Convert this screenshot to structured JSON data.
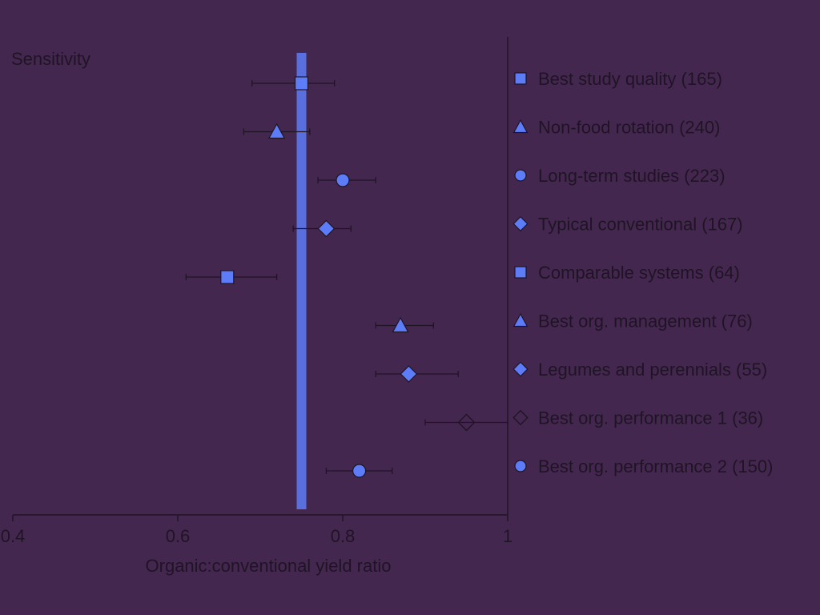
{
  "chart_data": {
    "type": "scatter",
    "title": "Sensitivity",
    "xlabel": "Organic:conventional yield ratio",
    "ylabel": "",
    "xlim": [
      0.4,
      1.0
    ],
    "xticks": [
      "0.4",
      "0.6",
      "0.8",
      "1"
    ],
    "xtick_values": [
      0.4,
      0.6,
      0.8,
      1.0
    ],
    "reference_line": 0.75,
    "grid": false,
    "legend_position": "right",
    "series": [
      {
        "name": "Best study quality (165)",
        "marker": "square",
        "x": 0.75,
        "lo": 0.69,
        "hi": 0.79
      },
      {
        "name": "Non-food rotation (240)",
        "marker": "triangle",
        "x": 0.72,
        "lo": 0.68,
        "hi": 0.76
      },
      {
        "name": "Long-term studies (223)",
        "marker": "circle",
        "x": 0.8,
        "lo": 0.77,
        "hi": 0.84
      },
      {
        "name": "Typical conventional (167)",
        "marker": "diamond",
        "x": 0.78,
        "lo": 0.74,
        "hi": 0.81
      },
      {
        "name": "Comparable systems (64)",
        "marker": "square",
        "x": 0.66,
        "lo": 0.61,
        "hi": 0.72
      },
      {
        "name": "Best org. management (76)",
        "marker": "triangle",
        "x": 0.87,
        "lo": 0.84,
        "hi": 0.91
      },
      {
        "name": "Legumes and perennials (55)",
        "marker": "diamond",
        "x": 0.88,
        "lo": 0.84,
        "hi": 0.94
      },
      {
        "name": "Best org. performance 1 (36)",
        "marker": "diamond-hollow",
        "x": 0.95,
        "lo": 0.9,
        "hi": 1.0
      },
      {
        "name": "Best org. performance 2 (150)",
        "marker": "circle",
        "x": 0.82,
        "lo": 0.78,
        "hi": 0.86
      }
    ]
  },
  "colors": {
    "background": "#44274e",
    "marker": "#5d7cf7",
    "ink": "#1f1426"
  }
}
